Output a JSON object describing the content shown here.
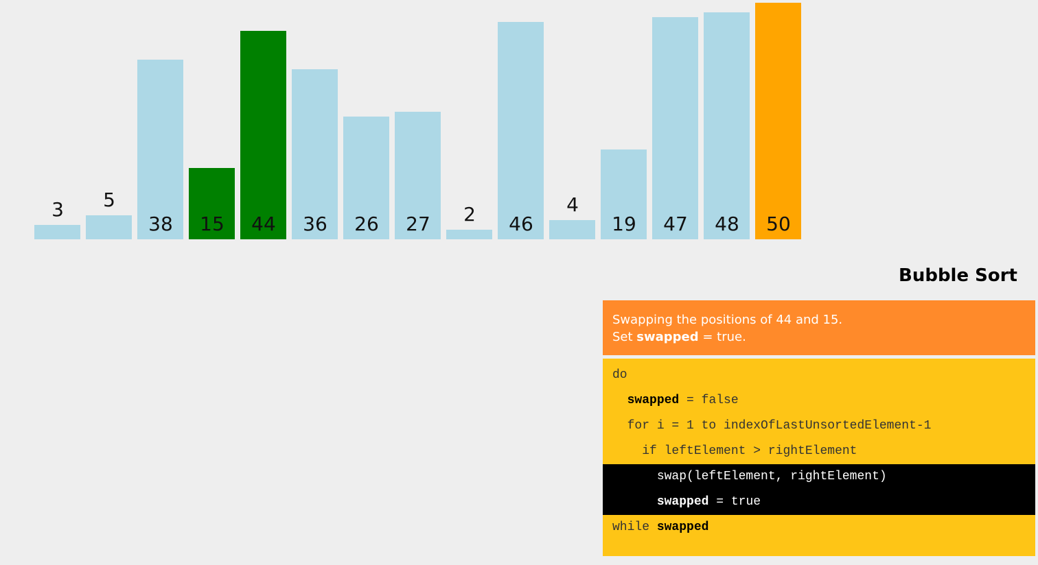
{
  "chart_data": {
    "type": "bar",
    "values": [
      3,
      5,
      38,
      15,
      44,
      36,
      26,
      27,
      2,
      46,
      4,
      19,
      47,
      48,
      50
    ],
    "labels": [
      "3",
      "5",
      "38",
      "15",
      "44",
      "36",
      "26",
      "27",
      "2",
      "46",
      "4",
      "19",
      "47",
      "48",
      "50"
    ],
    "states": [
      "default",
      "default",
      "default",
      "compare",
      "compare",
      "default",
      "default",
      "default",
      "default",
      "default",
      "default",
      "default",
      "default",
      "default",
      "sorted"
    ],
    "ylim": [
      0,
      50
    ]
  },
  "colors": {
    "default": "#add8e6",
    "compare": "#008000",
    "sorted": "#ffa500",
    "status_bg": "#ff8a2a",
    "code_bg": "#fec516",
    "active_line_bg": "#000000"
  },
  "title": "Bubble Sort",
  "status": {
    "line1": "Swapping the positions of 44 and 15.",
    "line2_prefix": "Set ",
    "line2_bold": "swapped",
    "line2_suffix": " = true."
  },
  "code": {
    "l1": "do",
    "l2_kw": "swapped",
    "l2_rest": " = false",
    "l3": "for i = 1 to indexOfLastUnsortedElement-1",
    "l4": "if leftElement > rightElement",
    "l5": "swap(leftElement, rightElement)",
    "l6_kw": "swapped",
    "l6_rest": " = true",
    "l7_pre": "while ",
    "l7_kw": "swapped"
  }
}
